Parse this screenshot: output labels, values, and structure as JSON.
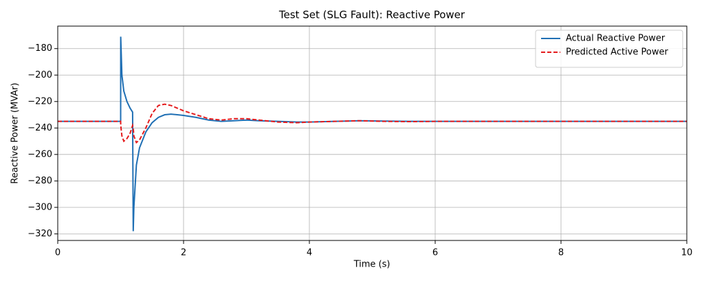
{
  "chart_data": {
    "type": "line",
    "title": "Test Set (SLG Fault): Reactive Power",
    "xlabel": "Time (s)",
    "ylabel": "Reactive Power (MVAr)",
    "x": [
      0,
      1.0,
      1.001,
      1.02,
      1.05,
      1.1,
      1.15,
      1.19,
      1.2,
      1.21,
      1.25,
      1.3,
      1.4,
      1.5,
      1.6,
      1.7,
      1.8,
      1.9,
      2.0,
      2.2,
      2.4,
      2.6,
      2.8,
      3.0,
      3.2,
      3.5,
      3.8,
      4.0,
      4.4,
      4.8,
      5.2,
      5.6,
      6,
      8,
      10
    ],
    "series": [
      {
        "name": "Actual Reactive Power",
        "color": "#1f6fb4",
        "dash": "solid",
        "values": [
          -235,
          -235,
          -171,
          -200,
          -212,
          -220,
          -225,
          -228,
          -318,
          -300,
          -268,
          -255,
          -243,
          -236,
          -232,
          -230,
          -229.5,
          -230,
          -230.5,
          -232,
          -234,
          -235,
          -234.5,
          -234,
          -234.5,
          -235,
          -235.5,
          -235.5,
          -235,
          -234.5,
          -234.8,
          -235,
          -235,
          -235,
          -235
        ]
      },
      {
        "name": "Predicted Active Power",
        "color": "#e41a1c",
        "dash": "dashed",
        "values": [
          -235,
          -235,
          -238,
          -246,
          -250,
          -248,
          -244,
          -238,
          -240,
          -246,
          -251,
          -249,
          -240,
          -229,
          -223,
          -222,
          -223,
          -225,
          -227,
          -230,
          -233,
          -234,
          -233,
          -233,
          -234,
          -235.5,
          -236,
          -235.5,
          -235,
          -234.5,
          -235,
          -235.2,
          -235,
          -235,
          -235
        ]
      }
    ],
    "xlim": [
      0,
      10
    ],
    "xticks": [
      0,
      2,
      4,
      6,
      8,
      10
    ],
    "ylim": [
      -325,
      -163
    ],
    "yticks": [
      {
        "value": -180,
        "label": "−180"
      },
      {
        "value": -200,
        "label": "−200"
      },
      {
        "value": -220,
        "label": "−220"
      },
      {
        "value": -240,
        "label": "−240"
      },
      {
        "value": -260,
        "label": "−260"
      },
      {
        "value": -280,
        "label": "−280"
      },
      {
        "value": -300,
        "label": "−300"
      },
      {
        "value": -320,
        "label": "−320"
      }
    ],
    "grid": true,
    "legend": "upper-right"
  }
}
